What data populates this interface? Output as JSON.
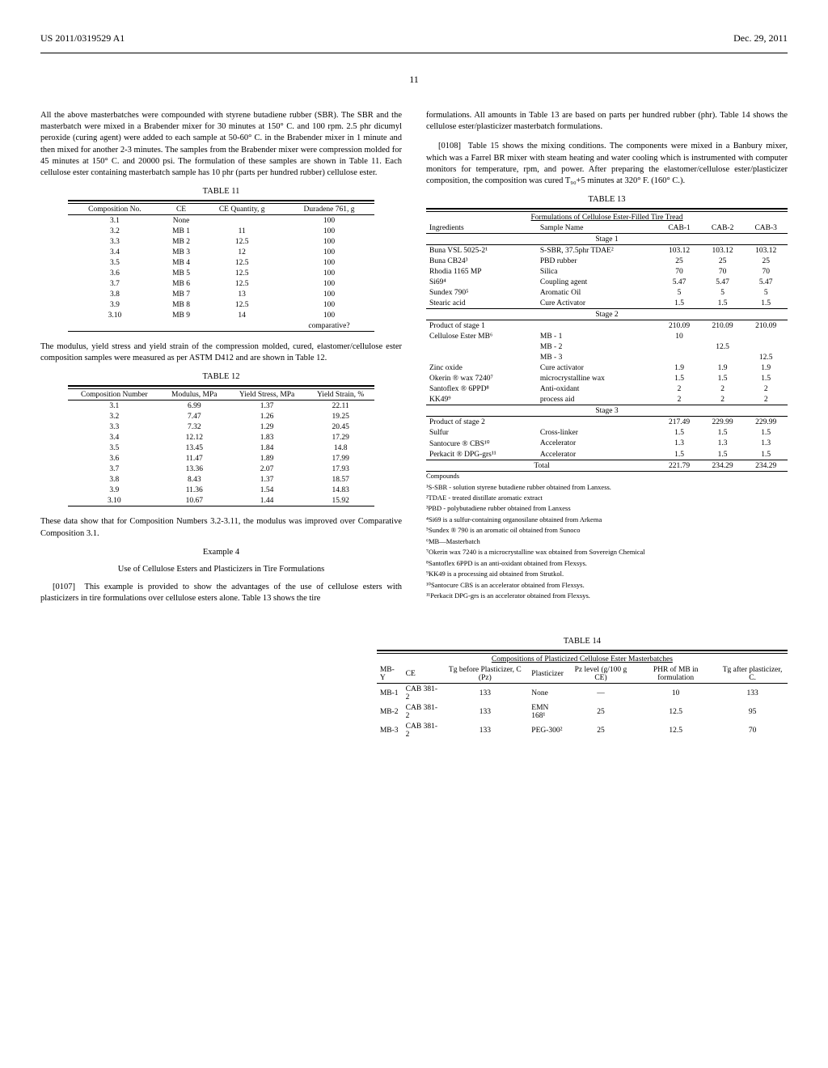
{
  "header": {
    "pub_no": "US 2011/0319529 A1",
    "date": "Dec. 29, 2011",
    "page": "11"
  },
  "body": {
    "p1": "All the above masterbatches were compounded with styrene butadiene rubber (SBR). The SBR and the masterbatch were mixed in a Brabender mixer for 30 minutes at 150° C. and 100 rpm. 2.5 phr dicumyl peroxide (curing agent) were added to each sample at 50-60° C. in the Brabender mixer in 1 minute and then mixed for another 2-3 minutes. The samples from the Brabender mixer were compression molded for 45 minutes at 150° C. and 20000 psi. The formulation of these samples are shown in Table 11. Each cellulose ester containing masterbatch sample has 10 phr (parts per hundred rubber) cellulose ester.",
    "table11": {
      "caption": "TABLE 11",
      "headers": [
        "Composition No.",
        "CE",
        "CE Quantity, g",
        "Duradene 761, g"
      ],
      "rows": [
        [
          "3.1",
          "None",
          "",
          "100"
        ],
        [
          "3.2",
          "MB 1",
          "11",
          "100"
        ],
        [
          "3.3",
          "MB 2",
          "12.5",
          "100"
        ],
        [
          "3.4",
          "MB 3",
          "12",
          "100"
        ],
        [
          "3.5",
          "MB 4",
          "12.5",
          "100"
        ],
        [
          "3.6",
          "MB 5",
          "12.5",
          "100"
        ],
        [
          "3.7",
          "MB 6",
          "12.5",
          "100"
        ],
        [
          "3.8",
          "MB 7",
          "13",
          "100"
        ],
        [
          "3.9",
          "MB 8",
          "12.5",
          "100"
        ],
        [
          "3.10",
          "MB 9",
          "14",
          "100"
        ],
        [
          "",
          "",
          "",
          "comparative?"
        ]
      ]
    },
    "p2": "The modulus, yield stress and yield strain of the compression molded, cured, elastomer/cellulose ester composition samples were measured as per ASTM D412 and are shown in Table 12.",
    "table12": {
      "caption": "TABLE 12",
      "headers": [
        "Composition Number",
        "Modulus, MPa",
        "Yield Stress, MPa",
        "Yield Strain, %"
      ],
      "rows": [
        [
          "3.1",
          "6.99",
          "1.37",
          "22.11"
        ],
        [
          "3.2",
          "7.47",
          "1.26",
          "19.25"
        ],
        [
          "3.3",
          "7.32",
          "1.29",
          "20.45"
        ],
        [
          "3.4",
          "12.12",
          "1.83",
          "17.29"
        ],
        [
          "3.5",
          "13.45",
          "1.84",
          "14.8"
        ],
        [
          "3.6",
          "11.47",
          "1.89",
          "17.99"
        ],
        [
          "3.7",
          "13.36",
          "2.07",
          "17.93"
        ],
        [
          "3.8",
          "8.43",
          "1.37",
          "18.57"
        ],
        [
          "3.9",
          "11.36",
          "1.54",
          "14.83"
        ],
        [
          "3.10",
          "10.67",
          "1.44",
          "15.92"
        ]
      ]
    },
    "p3": "These data show that for Composition Numbers 3.2-3.11, the modulus was improved over Comparative Composition 3.1.",
    "example4_label": "Example 4",
    "example4_title": "Use of Cellulose Esters and Plasticizers in Tire Formulations",
    "p4_num": "[0107]",
    "p4": "This example is provided to show the advantages of the use of cellulose esters with plasticizers in tire formulations over cellulose esters alone. Table 13 shows the tire",
    "p5": "formulations. All amounts in Table 13 are based on parts per hundred rubber (phr). Table 14 shows the cellulose ester/plasticizer masterbatch formulations.",
    "p6_num": "[0108]",
    "p6": "Table 15 shows the mixing conditions. The components were mixed in a Banbury mixer, which was a Farrel BR mixer with steam heating and water cooling which is instrumented with computer monitors for temperature, rpm, and power. After preparing the elastomer/cellulose ester/plasticizer composition, the composition was cured T₉₀+5 minutes at 320° F. (160° C.).",
    "table13": {
      "caption": "TABLE 13",
      "subcaption": "Formulations of Cellulose Ester-Filled Tire Tread",
      "headers": [
        "Ingredients",
        "Sample Name",
        "CAB-1",
        "CAB-2",
        "CAB-3"
      ],
      "stage1": "Stage 1",
      "stage1_rows": [
        [
          "Buna VSL 5025-2¹",
          "S-SBR, 37.5phr TDAE²",
          "103.12",
          "103.12",
          "103.12"
        ],
        [
          "Buna CB24³",
          "PBD rubber",
          "25",
          "25",
          "25"
        ],
        [
          "Rhodia 1165 MP",
          "Silica",
          "70",
          "70",
          "70"
        ],
        [
          "Si69⁴",
          "Coupling agent",
          "5.47",
          "5.47",
          "5.47"
        ],
        [
          "Sundex 790⁵",
          "Aromatic Oil",
          "5",
          "5",
          "5"
        ],
        [
          "Stearic acid",
          "Cure Activator",
          "1.5",
          "1.5",
          "1.5"
        ]
      ],
      "stage2": "Stage 2",
      "stage2_rows": [
        [
          "Product of stage 1",
          "",
          "210.09",
          "210.09",
          "210.09"
        ],
        [
          "Cellulose Ester MB⁶",
          "MB - 1",
          "10",
          "",
          ""
        ],
        [
          "",
          "MB - 2",
          "",
          "12.5",
          ""
        ],
        [
          "",
          "MB - 3",
          "",
          "",
          "12.5"
        ],
        [
          "Zinc oxide",
          "Cure activator",
          "1.9",
          "1.9",
          "1.9"
        ],
        [
          "Okerin ® wax 7240⁷",
          "microcrystalline wax",
          "1.5",
          "1.5",
          "1.5"
        ],
        [
          "Santoflex ® 6PPD⁸",
          "Anti-oxidant",
          "2",
          "2",
          "2"
        ],
        [
          "KK49⁹",
          "process aid",
          "2",
          "2",
          "2"
        ]
      ],
      "stage3": "Stage 3",
      "stage3_rows": [
        [
          "Product of stage 2",
          "",
          "217.49",
          "229.99",
          "229.99"
        ],
        [
          "Sulfur",
          "Cross-linker",
          "1.5",
          "1.5",
          "1.5"
        ],
        [
          "Santocure ® CBS¹⁰",
          "Accelerator",
          "1.3",
          "1.3",
          "1.3"
        ],
        [
          "Perkacit ® DPG-grs¹¹",
          "Accelerator",
          "1.5",
          "1.5",
          "1.5"
        ]
      ],
      "total": [
        "Total",
        "",
        "221.79",
        "234.29",
        "234.29"
      ]
    },
    "footnotes": {
      "label": "Compounds",
      "items": [
        "¹S-SBR - solution styrene butadiene rubber obtained from Lanxess.",
        "²TDAE - treated distillate aromatic extract",
        "³PBD - polybutadiene rubber obtained from Lanxess",
        "⁴Si69 is a sulfur-containing organosilane obtained from Arkema",
        "⁵Sundex ® 790 is an aromatic oil obtained from Sunoco",
        "⁶MB—Masterbatch",
        "⁷Okerin wax 7240 is a microcrystalline wax obtained from Sovereign Chemical",
        "⁸Santoflex 6PPD is an anti-oxidant obtained from Flexsys.",
        "⁹KK49 is a processing aid obtained from Strutkol.",
        "¹⁰Santocure CBS is an accelerator obtained from Flexsys.",
        "¹¹Perkacit DPG-grs is an accelerator obtained from Flexsys."
      ]
    },
    "table14": {
      "caption": "TABLE 14",
      "subcaption": "Compositions of Plasticized Cellulose Ester Masterbatches",
      "headers": [
        "MB-Y",
        "CE",
        "Tg before Plasticizer, C (Pz)",
        "Plasticizer",
        "Pz level (g/100 g CE)",
        "PHR of MB in formulation",
        "Tg after plasticizer, C."
      ],
      "rows": [
        [
          "MB-1",
          "CAB 381-2",
          "133",
          "None",
          "—",
          "10",
          "133"
        ],
        [
          "MB-2",
          "CAB 381-2",
          "133",
          "EMN 168¹",
          "25",
          "12.5",
          "95"
        ],
        [
          "MB-3",
          "CAB 381-2",
          "133",
          "PEG-300²",
          "25",
          "12.5",
          "70"
        ]
      ]
    }
  }
}
